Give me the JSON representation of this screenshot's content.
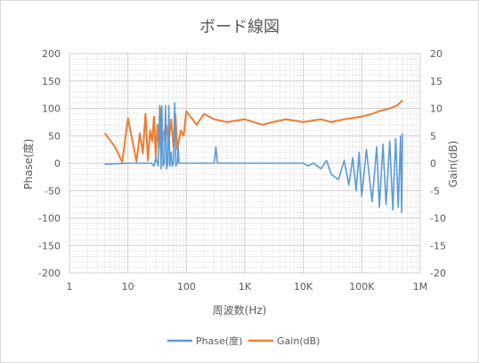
{
  "chart_data": {
    "type": "line",
    "title": "ボード線図",
    "xlabel": "周波数(Hz)",
    "ylabel_left": "Phase(度)",
    "ylabel_right": "Gain(dB)",
    "x_scale": "log",
    "xlim": [
      1,
      1000000
    ],
    "ylim_left": [
      -200,
      200
    ],
    "ylim_right": [
      -20,
      20
    ],
    "x_ticks": [
      "1",
      "10",
      "100",
      "1K",
      "10K",
      "100K",
      "1M"
    ],
    "y_ticks_left": [
      "200",
      "150",
      "100",
      "50",
      "0",
      "-50",
      "-100",
      "-150",
      "-200"
    ],
    "y_ticks_right": [
      "20",
      "15",
      "10",
      "5",
      "0",
      "-5",
      "-10",
      "-15",
      "-20"
    ],
    "grid": true,
    "legend_position": "bottom",
    "series": [
      {
        "name": "Phase(度)",
        "axis": "left",
        "color": "#5B9BD5",
        "x": [
          4,
          10,
          20,
          25,
          28,
          30,
          33,
          35,
          37,
          38,
          40,
          42,
          44,
          46,
          48,
          50,
          52,
          55,
          57,
          60,
          63,
          66,
          70,
          72,
          75,
          80,
          85,
          90,
          95,
          100,
          300,
          320,
          340,
          1000,
          3000,
          10000,
          12000,
          15000,
          20000,
          25000,
          30000,
          40000,
          50000,
          60000,
          70000,
          80000,
          90000,
          100000,
          120000,
          150000,
          180000,
          200000,
          230000,
          260000,
          300000,
          340000,
          380000,
          420000,
          460000,
          480000,
          500000
        ],
        "values": [
          -2,
          0,
          0,
          0,
          -5,
          10,
          -5,
          105,
          -10,
          105,
          -5,
          0,
          105,
          -10,
          0,
          105,
          -5,
          20,
          -5,
          0,
          110,
          -5,
          0,
          30,
          0,
          0,
          0,
          0,
          0,
          0,
          0,
          30,
          0,
          0,
          0,
          0,
          -5,
          0,
          -10,
          5,
          -20,
          -30,
          5,
          -40,
          10,
          -50,
          20,
          -60,
          25,
          -70,
          30,
          -80,
          35,
          -75,
          40,
          -85,
          45,
          -80,
          50,
          -90,
          55
        ]
      },
      {
        "name": "Gain(dB)",
        "axis": "right",
        "color": "#ED7D31",
        "x": [
          4,
          6,
          8,
          10,
          12,
          14,
          16,
          18,
          20,
          22,
          24,
          26,
          28,
          30,
          32,
          34,
          36,
          38,
          40,
          45,
          50,
          55,
          60,
          65,
          70,
          80,
          90,
          100,
          150,
          200,
          300,
          500,
          1000,
          2000,
          3000,
          5000,
          10000,
          20000,
          30000,
          50000,
          100000,
          150000,
          200000,
          300000,
          400000,
          500000
        ],
        "values": [
          5.5,
          3,
          0.2,
          8.2,
          4,
          0.3,
          5.5,
          1.8,
          9,
          0.5,
          6,
          4,
          8.5,
          1,
          7,
          3,
          10,
          2,
          5,
          7,
          4,
          8,
          3,
          9,
          2.5,
          6,
          5,
          9.5,
          7,
          9,
          8,
          7.5,
          8,
          7,
          7.5,
          8,
          7.5,
          8,
          7.5,
          8,
          8.5,
          9,
          9.5,
          10,
          10.5,
          11.5
        ]
      }
    ]
  }
}
